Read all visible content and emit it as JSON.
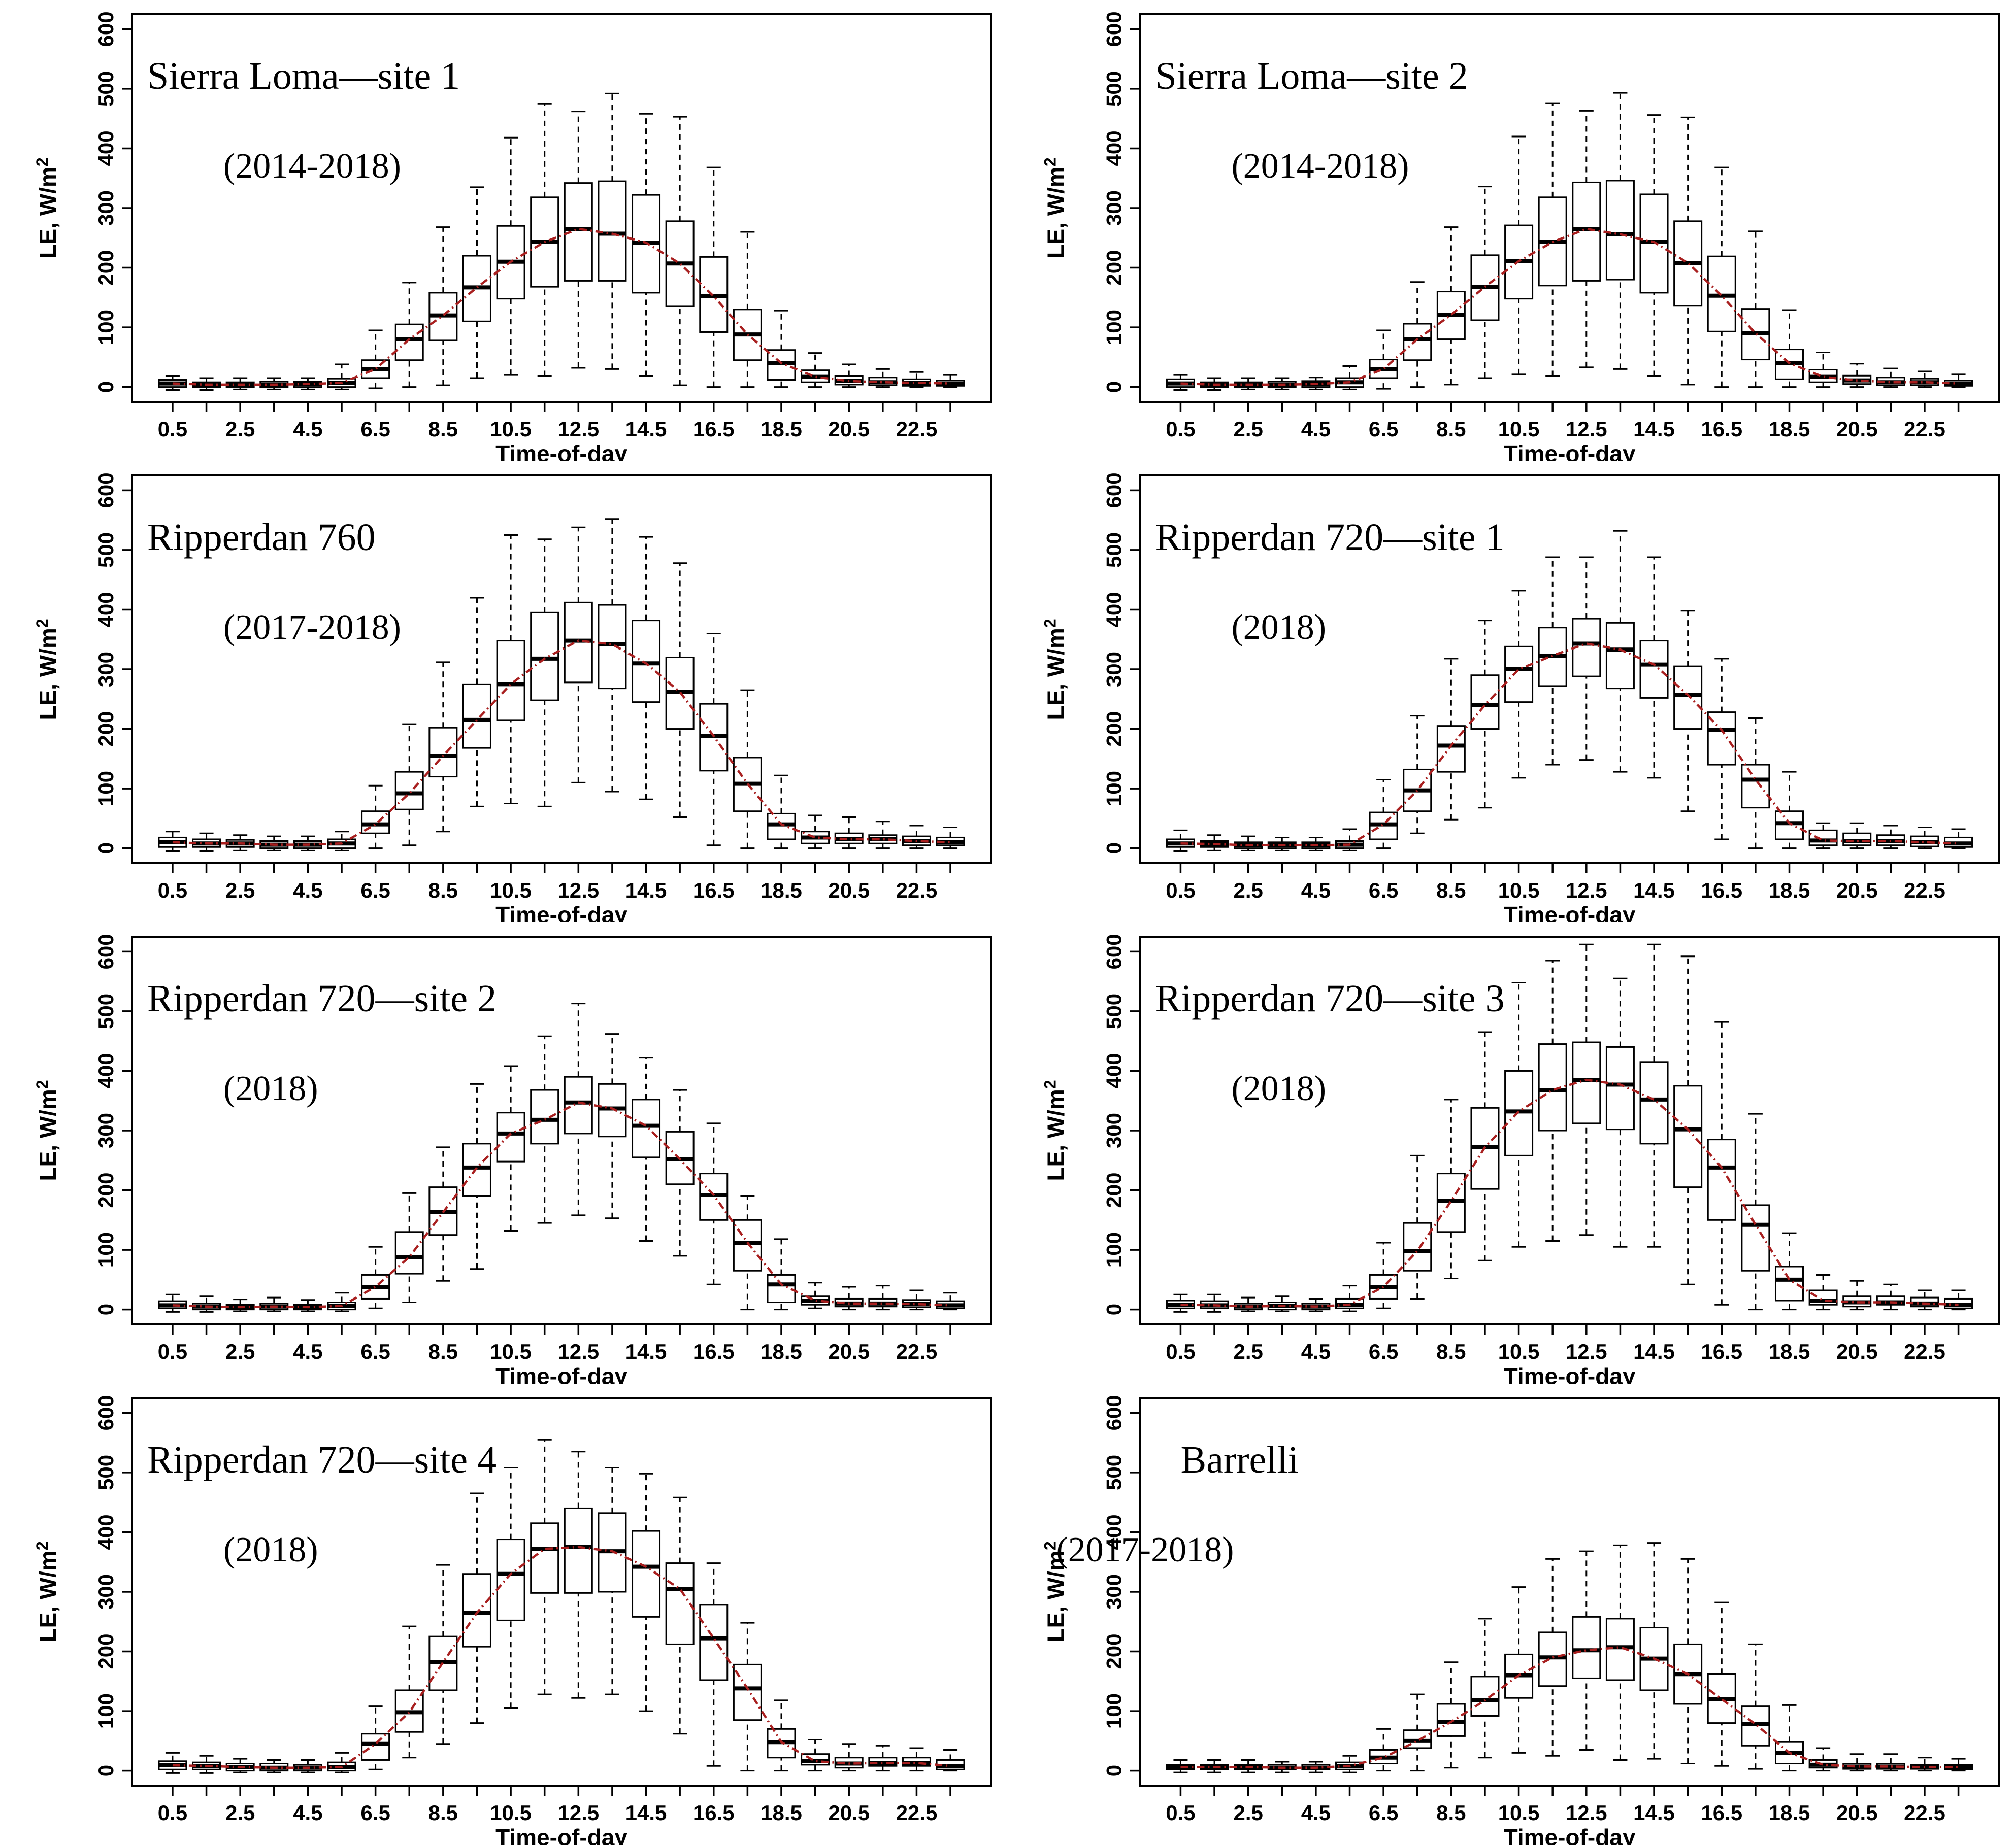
{
  "figure": {
    "background": "#ffffff",
    "frame_color": "#000000",
    "box_fill": "#ffffff",
    "box_stroke": "#000000",
    "median_color": "#000000",
    "trend_line_color": "#a81f1f",
    "axes": {
      "xlabel": "Time-of-day",
      "ylabel": "LE, W/m",
      "ylabel_exponent": "2",
      "ylim": [
        -25,
        625
      ],
      "yticks": [
        0,
        100,
        200,
        300,
        400,
        500,
        600
      ],
      "hours": [
        0.5,
        1.5,
        2.5,
        3.5,
        4.5,
        5.5,
        6.5,
        7.5,
        8.5,
        9.5,
        10.5,
        11.5,
        12.5,
        13.5,
        14.5,
        15.5,
        16.5,
        17.5,
        18.5,
        19.5,
        20.5,
        21.5,
        22.5,
        23.5
      ],
      "xtick_labels": [
        "0.5",
        "2.5",
        "4.5",
        "6.5",
        "8.5",
        "10.5",
        "12.5",
        "14.5",
        "16.5",
        "18.5",
        "20.5",
        "22.5"
      ]
    }
  },
  "chart_data": [
    {
      "type": "boxplot",
      "title": "Sierra Loma—site 1",
      "subtitle": "(2014-2018)",
      "xlabel": "Time-of-day",
      "ylabel": "LE, W/m2",
      "boxes": [
        [
          -5,
          0,
          6,
          12,
          18
        ],
        [
          -5,
          0,
          4,
          8,
          15
        ],
        [
          -4,
          0,
          4,
          8,
          15
        ],
        [
          -4,
          0,
          4,
          9,
          15
        ],
        [
          -4,
          0,
          5,
          9,
          15
        ],
        [
          -4,
          0,
          7,
          14,
          38
        ],
        [
          -2,
          15,
          30,
          45,
          95
        ],
        [
          0,
          45,
          80,
          105,
          175
        ],
        [
          3,
          78,
          120,
          158,
          268
        ],
        [
          15,
          110,
          167,
          220,
          335
        ],
        [
          20,
          148,
          210,
          270,
          418
        ],
        [
          18,
          168,
          243,
          318,
          475
        ],
        [
          32,
          178,
          265,
          342,
          462
        ],
        [
          30,
          178,
          257,
          345,
          492
        ],
        [
          18,
          158,
          242,
          322,
          458
        ],
        [
          3,
          135,
          207,
          278,
          453
        ],
        [
          0,
          92,
          152,
          218,
          368
        ],
        [
          0,
          45,
          88,
          130,
          260
        ],
        [
          0,
          12,
          40,
          62,
          128
        ],
        [
          0,
          8,
          17,
          28,
          57
        ],
        [
          0,
          4,
          10,
          18,
          38
        ],
        [
          0,
          3,
          8,
          16,
          30
        ],
        [
          0,
          2,
          7,
          13,
          25
        ],
        [
          0,
          2,
          6,
          11,
          20
        ]
      ]
    },
    {
      "type": "boxplot",
      "title": "Sierra Loma—site 2",
      "subtitle": "(2014-2018)",
      "xlabel": "Time-of-day",
      "ylabel": "LE, W/m2",
      "boxes": [
        [
          -5,
          0,
          6,
          13,
          20
        ],
        [
          -5,
          0,
          4,
          8,
          15
        ],
        [
          -4,
          0,
          4,
          8,
          15
        ],
        [
          -4,
          0,
          4,
          9,
          15
        ],
        [
          -4,
          0,
          5,
          10,
          16
        ],
        [
          -4,
          0,
          8,
          15,
          35
        ],
        [
          -3,
          15,
          30,
          46,
          95
        ],
        [
          0,
          45,
          80,
          106,
          176
        ],
        [
          4,
          80,
          121,
          160,
          268
        ],
        [
          15,
          112,
          168,
          221,
          336
        ],
        [
          21,
          148,
          211,
          271,
          420
        ],
        [
          18,
          170,
          243,
          318,
          476
        ],
        [
          33,
          178,
          265,
          343,
          463
        ],
        [
          30,
          180,
          256,
          346,
          493
        ],
        [
          18,
          158,
          243,
          323,
          456
        ],
        [
          4,
          136,
          208,
          278,
          452
        ],
        [
          0,
          93,
          153,
          219,
          368
        ],
        [
          0,
          46,
          90,
          131,
          261
        ],
        [
          0,
          13,
          40,
          63,
          129
        ],
        [
          0,
          8,
          17,
          29,
          58
        ],
        [
          0,
          5,
          11,
          19,
          39
        ],
        [
          0,
          3,
          8,
          16,
          31
        ],
        [
          0,
          3,
          8,
          14,
          26
        ],
        [
          0,
          2,
          6,
          11,
          21
        ]
      ]
    },
    {
      "type": "boxplot",
      "title": "Ripperdan 760",
      "subtitle": "(2017-2018)",
      "xlabel": "Time-of-day",
      "ylabel": "LE, W/m2",
      "boxes": [
        [
          -5,
          2,
          10,
          18,
          28
        ],
        [
          -5,
          2,
          8,
          15,
          25
        ],
        [
          -4,
          2,
          8,
          14,
          22
        ],
        [
          -4,
          0,
          6,
          12,
          20
        ],
        [
          -4,
          0,
          6,
          12,
          20
        ],
        [
          -4,
          0,
          8,
          15,
          28
        ],
        [
          0,
          25,
          40,
          62,
          105
        ],
        [
          5,
          65,
          92,
          128,
          208
        ],
        [
          28,
          120,
          155,
          202,
          312
        ],
        [
          70,
          168,
          215,
          275,
          420
        ],
        [
          75,
          215,
          275,
          348,
          525
        ],
        [
          70,
          248,
          318,
          395,
          518
        ],
        [
          110,
          278,
          348,
          412,
          538
        ],
        [
          95,
          268,
          342,
          408,
          552
        ],
        [
          82,
          245,
          310,
          382,
          522
        ],
        [
          52,
          200,
          262,
          320,
          478
        ],
        [
          5,
          130,
          188,
          242,
          360
        ],
        [
          0,
          62,
          108,
          152,
          265
        ],
        [
          0,
          15,
          40,
          58,
          122
        ],
        [
          0,
          8,
          18,
          28,
          55
        ],
        [
          0,
          8,
          15,
          25,
          52
        ],
        [
          0,
          8,
          15,
          22,
          45
        ],
        [
          0,
          5,
          12,
          20,
          38
        ],
        [
          0,
          5,
          10,
          18,
          35
        ]
      ]
    },
    {
      "type": "boxplot",
      "title": "Ripperdan 720—site 1",
      "subtitle": "(2018)",
      "xlabel": "Time-of-day",
      "ylabel": "LE, W/m2",
      "boxes": [
        [
          -5,
          2,
          8,
          15,
          30
        ],
        [
          -4,
          2,
          7,
          12,
          22
        ],
        [
          -4,
          0,
          5,
          10,
          20
        ],
        [
          -4,
          0,
          5,
          10,
          18
        ],
        [
          -4,
          0,
          5,
          10,
          18
        ],
        [
          -4,
          0,
          6,
          12,
          32
        ],
        [
          0,
          15,
          40,
          60,
          115
        ],
        [
          25,
          62,
          97,
          132,
          222
        ],
        [
          48,
          128,
          172,
          205,
          318
        ],
        [
          68,
          200,
          240,
          290,
          382
        ],
        [
          118,
          245,
          300,
          338,
          432
        ],
        [
          140,
          272,
          323,
          370,
          488
        ],
        [
          148,
          288,
          343,
          385,
          488
        ],
        [
          128,
          268,
          333,
          378,
          532
        ],
        [
          118,
          252,
          308,
          348,
          488
        ],
        [
          62,
          200,
          257,
          305,
          398
        ],
        [
          15,
          140,
          198,
          228,
          318
        ],
        [
          0,
          68,
          115,
          140,
          218
        ],
        [
          0,
          15,
          42,
          62,
          128
        ],
        [
          0,
          5,
          13,
          30,
          42
        ],
        [
          0,
          5,
          12,
          25,
          42
        ],
        [
          0,
          5,
          12,
          22,
          38
        ],
        [
          0,
          3,
          10,
          20,
          35
        ],
        [
          0,
          2,
          8,
          18,
          32
        ]
      ]
    },
    {
      "type": "boxplot",
      "title": "Ripperdan 720—site 2",
      "subtitle": "(2018)",
      "xlabel": "Time-of-day",
      "ylabel": "LE, W/m2",
      "boxes": [
        [
          -4,
          2,
          7,
          14,
          25
        ],
        [
          -4,
          0,
          5,
          10,
          22
        ],
        [
          -3,
          0,
          4,
          8,
          17
        ],
        [
          -3,
          0,
          5,
          10,
          20
        ],
        [
          -3,
          0,
          4,
          8,
          16
        ],
        [
          -3,
          0,
          6,
          12,
          28
        ],
        [
          2,
          18,
          38,
          58,
          105
        ],
        [
          12,
          60,
          88,
          130,
          195
        ],
        [
          48,
          125,
          163,
          205,
          272
        ],
        [
          68,
          190,
          238,
          278,
          378
        ],
        [
          132,
          248,
          295,
          330,
          408
        ],
        [
          145,
          278,
          318,
          368,
          458
        ],
        [
          158,
          295,
          347,
          390,
          513
        ],
        [
          153,
          290,
          337,
          378,
          462
        ],
        [
          115,
          255,
          308,
          352,
          422
        ],
        [
          90,
          210,
          252,
          298,
          368
        ],
        [
          42,
          150,
          192,
          228,
          312
        ],
        [
          0,
          65,
          112,
          150,
          190
        ],
        [
          0,
          12,
          42,
          58,
          118
        ],
        [
          2,
          8,
          15,
          22,
          45
        ],
        [
          0,
          5,
          10,
          18,
          38
        ],
        [
          0,
          5,
          10,
          18,
          40
        ],
        [
          0,
          4,
          9,
          16,
          32
        ],
        [
          0,
          2,
          7,
          14,
          28
        ]
      ]
    },
    {
      "type": "boxplot",
      "title": "Ripperdan 720—site 3",
      "subtitle": "(2018)",
      "xlabel": "Time-of-day",
      "ylabel": "LE, W/m2",
      "boxes": [
        [
          -4,
          2,
          8,
          15,
          25
        ],
        [
          -4,
          2,
          7,
          14,
          25
        ],
        [
          -3,
          0,
          5,
          10,
          20
        ],
        [
          -3,
          0,
          6,
          12,
          22
        ],
        [
          -3,
          0,
          5,
          10,
          18
        ],
        [
          -3,
          2,
          8,
          18,
          40
        ],
        [
          2,
          18,
          38,
          58,
          112
        ],
        [
          18,
          65,
          98,
          145,
          258
        ],
        [
          52,
          130,
          182,
          228,
          352
        ],
        [
          82,
          202,
          272,
          338,
          465
        ],
        [
          105,
          258,
          332,
          400,
          548
        ],
        [
          115,
          300,
          368,
          445,
          585
        ],
        [
          125,
          312,
          385,
          448,
          612
        ],
        [
          105,
          302,
          377,
          440,
          555
        ],
        [
          105,
          278,
          352,
          415,
          612
        ],
        [
          42,
          205,
          302,
          375,
          592
        ],
        [
          8,
          150,
          238,
          285,
          482
        ],
        [
          0,
          65,
          142,
          175,
          328
        ],
        [
          0,
          15,
          50,
          72,
          128
        ],
        [
          0,
          8,
          15,
          32,
          58
        ],
        [
          0,
          5,
          12,
          22,
          48
        ],
        [
          0,
          8,
          12,
          22,
          42
        ],
        [
          0,
          5,
          10,
          20,
          32
        ],
        [
          0,
          2,
          8,
          18,
          32
        ]
      ]
    },
    {
      "type": "boxplot",
      "title": "Ripperdan 720—site 4",
      "subtitle": "(2018)",
      "xlabel": "Time-of-day",
      "ylabel": "LE, W/m2",
      "boxes": [
        [
          -4,
          2,
          9,
          16,
          30
        ],
        [
          -4,
          2,
          8,
          14,
          25
        ],
        [
          -3,
          0,
          6,
          12,
          20
        ],
        [
          -3,
          0,
          5,
          12,
          18
        ],
        [
          -3,
          0,
          5,
          10,
          18
        ],
        [
          -3,
          0,
          6,
          14,
          30
        ],
        [
          2,
          18,
          45,
          62,
          108
        ],
        [
          22,
          65,
          98,
          135,
          242
        ],
        [
          45,
          135,
          182,
          225,
          345
        ],
        [
          80,
          208,
          265,
          330,
          465
        ],
        [
          105,
          252,
          330,
          388,
          508
        ],
        [
          128,
          298,
          372,
          415,
          555
        ],
        [
          122,
          298,
          375,
          440,
          535
        ],
        [
          128,
          300,
          368,
          432,
          508
        ],
        [
          100,
          258,
          342,
          402,
          498
        ],
        [
          62,
          212,
          305,
          348,
          458
        ],
        [
          8,
          152,
          222,
          278,
          348
        ],
        [
          0,
          85,
          138,
          178,
          248
        ],
        [
          0,
          22,
          48,
          70,
          118
        ],
        [
          0,
          10,
          16,
          28,
          52
        ],
        [
          0,
          5,
          12,
          22,
          45
        ],
        [
          0,
          8,
          13,
          22,
          42
        ],
        [
          0,
          8,
          13,
          22,
          38
        ],
        [
          0,
          2,
          8,
          18,
          35
        ]
      ]
    },
    {
      "type": "boxplot",
      "title": "Barrelli",
      "subtitle": "(2017-2018)",
      "xlabel": "Time-of-day",
      "ylabel": "LE, W/m2",
      "boxes": [
        [
          -3,
          2,
          6,
          10,
          18
        ],
        [
          -3,
          2,
          6,
          10,
          18
        ],
        [
          -3,
          2,
          6,
          10,
          18
        ],
        [
          -3,
          2,
          5,
          10,
          15
        ],
        [
          -3,
          2,
          5,
          10,
          15
        ],
        [
          -3,
          2,
          8,
          14,
          25
        ],
        [
          0,
          12,
          22,
          35,
          70
        ],
        [
          0,
          38,
          50,
          68,
          128
        ],
        [
          5,
          58,
          82,
          112,
          182
        ],
        [
          22,
          92,
          118,
          158,
          255
        ],
        [
          30,
          122,
          160,
          195,
          308
        ],
        [
          25,
          142,
          190,
          232,
          355
        ],
        [
          35,
          155,
          202,
          258,
          368
        ],
        [
          18,
          152,
          207,
          255,
          378
        ],
        [
          20,
          135,
          188,
          240,
          382
        ],
        [
          12,
          112,
          162,
          212,
          355
        ],
        [
          8,
          80,
          120,
          162,
          282
        ],
        [
          3,
          42,
          78,
          108,
          212
        ],
        [
          0,
          12,
          30,
          48,
          110
        ],
        [
          0,
          5,
          10,
          18,
          38
        ],
        [
          0,
          3,
          7,
          12,
          28
        ],
        [
          0,
          3,
          7,
          12,
          28
        ],
        [
          0,
          3,
          6,
          10,
          22
        ],
        [
          0,
          2,
          6,
          10,
          20
        ]
      ]
    }
  ]
}
